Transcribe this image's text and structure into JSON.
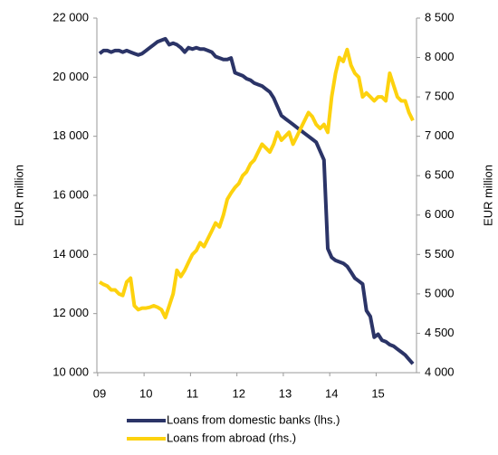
{
  "chart_data": {
    "type": "line",
    "categories": [
      "09",
      null,
      null,
      null,
      null,
      null,
      null,
      null,
      null,
      null,
      null,
      null,
      "10",
      null,
      null,
      null,
      null,
      null,
      null,
      null,
      null,
      null,
      null,
      null,
      "11",
      null,
      null,
      null,
      null,
      null,
      null,
      null,
      null,
      null,
      null,
      null,
      "12",
      null,
      null,
      null,
      null,
      null,
      null,
      null,
      null,
      null,
      null,
      null,
      "13",
      null,
      null,
      null,
      null,
      null,
      null,
      null,
      null,
      null,
      null,
      null,
      "14",
      null,
      null,
      null,
      null,
      null,
      null,
      null,
      null,
      null,
      null,
      null,
      "15",
      null,
      null,
      null,
      null,
      null,
      null,
      null,
      null,
      null
    ],
    "series": [
      {
        "name": "Loans from domestic banks (lhs.)",
        "color": "#2b3467",
        "axis": "y",
        "values": [
          20800,
          20900,
          20900,
          20850,
          20900,
          20900,
          20850,
          20900,
          20850,
          20800,
          20750,
          20800,
          20900,
          21000,
          21100,
          21200,
          21250,
          21300,
          21100,
          21150,
          21100,
          21000,
          20850,
          21000,
          20950,
          21000,
          20950,
          20950,
          20900,
          20850,
          20700,
          20650,
          20600,
          20600,
          20650,
          20150,
          20100,
          20050,
          19950,
          19900,
          19800,
          19750,
          19700,
          19600,
          19500,
          19300,
          19000,
          18700,
          18600,
          18500,
          18400,
          18300,
          18200,
          18100,
          18000,
          17900,
          17800,
          17500,
          17200,
          14200,
          13900,
          13800,
          13750,
          13700,
          13600,
          13400,
          13200,
          13100,
          13000,
          12100,
          11900,
          11200,
          11300,
          11100,
          11050,
          10950,
          10900,
          10800,
          10700,
          10600,
          10450,
          10300
        ]
      },
      {
        "name": "Loans from abroad (rhs.)",
        "color": "#fdd20e",
        "axis": "y2",
        "values": [
          5150,
          5120,
          5100,
          5050,
          5050,
          5000,
          4980,
          5150,
          5200,
          4850,
          4800,
          4820,
          4820,
          4830,
          4850,
          4830,
          4800,
          4700,
          4850,
          5000,
          5300,
          5220,
          5300,
          5400,
          5500,
          5550,
          5650,
          5600,
          5700,
          5800,
          5900,
          5850,
          6000,
          6200,
          6280,
          6350,
          6400,
          6500,
          6550,
          6650,
          6700,
          6800,
          6900,
          6850,
          6800,
          6900,
          7050,
          6950,
          7000,
          7050,
          6900,
          7000,
          7100,
          7200,
          7300,
          7250,
          7150,
          7100,
          7150,
          7050,
          7500,
          7800,
          8000,
          7950,
          8100,
          7900,
          7800,
          7750,
          7500,
          7550,
          7500,
          7450,
          7500,
          7500,
          7450,
          7800,
          7650,
          7500,
          7450,
          7450,
          7300,
          7200
        ]
      }
    ],
    "ylabel": "EUR million",
    "y2label": "EUR million",
    "ylim": [
      10000,
      22000
    ],
    "yticks": [
      {
        "value": 10000,
        "label": "10 000"
      },
      {
        "value": 12000,
        "label": "12 000"
      },
      {
        "value": 14000,
        "label": "14 000"
      },
      {
        "value": 16000,
        "label": "16 000"
      },
      {
        "value": 18000,
        "label": "18 000"
      },
      {
        "value": 20000,
        "label": "20 000"
      },
      {
        "value": 22000,
        "label": "22 000"
      }
    ],
    "y2lim": [
      4000,
      8500
    ],
    "y2ticks": [
      {
        "value": 4000,
        "label": "4 000"
      },
      {
        "value": 4500,
        "label": "4 500"
      },
      {
        "value": 5000,
        "label": "5 000"
      },
      {
        "value": 5500,
        "label": "5 500"
      },
      {
        "value": 6000,
        "label": "6 000"
      },
      {
        "value": 6500,
        "label": "6 500"
      },
      {
        "value": 7000,
        "label": "7 000"
      },
      {
        "value": 7500,
        "label": "7 500"
      },
      {
        "value": 8000,
        "label": "8 000"
      },
      {
        "value": 8500,
        "label": "8 500"
      }
    ],
    "legend": "bottom"
  }
}
